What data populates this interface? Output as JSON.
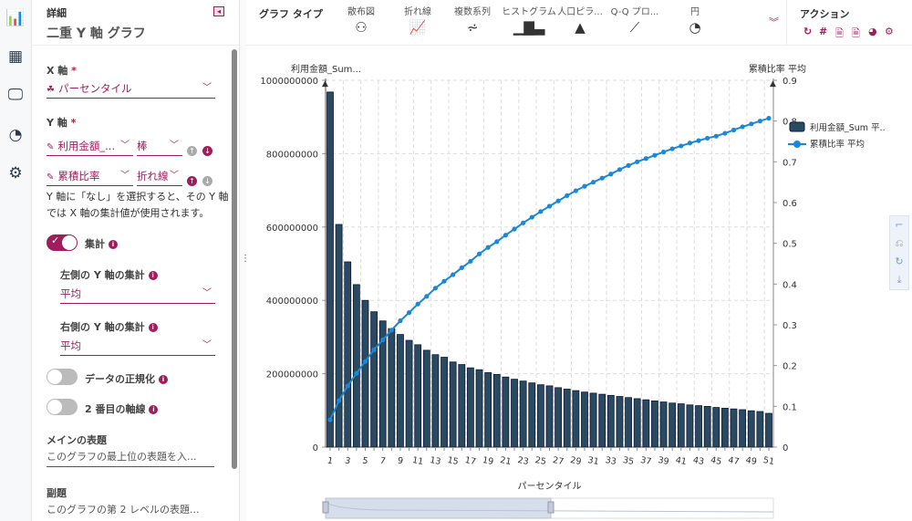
{
  "rail": {
    "icons": [
      "bar-chart-icon",
      "table-icon",
      "monitor-icon",
      "dashboard-icon",
      "gear-icon"
    ]
  },
  "panel": {
    "kicker": "詳細",
    "title": "二重 Y 軸 グラフ",
    "x_axis": {
      "label": "X 軸",
      "required": "*",
      "value": "パーセンタイル"
    },
    "y_axis": {
      "label": "Y 軸",
      "required": "*",
      "rows": [
        {
          "field": "利用金額_...",
          "type": "棒"
        },
        {
          "field": "累積比率",
          "type": "折れ線"
        }
      ]
    },
    "note": "Y 軸に「なし」を選択すると、その Y 軸では X 軸の集計値が使用されます。",
    "aggregate": {
      "label": "集計",
      "on": true
    },
    "left_agg": {
      "label": "左側の Y 軸の集計",
      "value": "平均"
    },
    "right_agg": {
      "label": "右側の Y 軸の集計",
      "value": "平均"
    },
    "normalize": {
      "label": "データの正規化",
      "on": false
    },
    "second_axis": {
      "label": "2 番目の軸線",
      "on": false
    },
    "main_title": {
      "label": "メインの表題",
      "placeholder": "このグラフの最上位の表題を入..."
    },
    "subtitle": {
      "label": "副題",
      "placeholder": "このグラフの第 2 レベルの表題..."
    }
  },
  "toolbar": {
    "chart_type_label": "グラフ タイプ",
    "types": [
      {
        "label": "散布図",
        "icon": "scatter-icon"
      },
      {
        "label": "折れ線",
        "icon": "line-icon"
      },
      {
        "label": "複数系列",
        "icon": "multi-series-icon"
      },
      {
        "label": "ヒストグラム",
        "icon": "histogram-icon"
      },
      {
        "label": "人口ピラ...",
        "icon": "pyramid-icon"
      },
      {
        "label": "Q-Q プロ...",
        "icon": "qq-plot-icon"
      },
      {
        "label": "円",
        "icon": "pie-icon"
      }
    ],
    "actions_label": "アクション",
    "actions": [
      "refresh-icon",
      "hash-icon",
      "pdf-icon",
      "image-icon",
      "dashboard-icon",
      "gear-icon"
    ]
  },
  "colors": {
    "accent": "#a01c5c",
    "bar": "#2a4a60",
    "line": "#1a88d8"
  },
  "chart_data": {
    "type": "bar+line",
    "xlabel": "パーセンタイル",
    "ylabel_left": "利用金額_Sum...",
    "ylabel_right": "累積比率 平均",
    "ylim_left": [
      0,
      1000000000
    ],
    "ylim_right": [
      0,
      0.9
    ],
    "left_ticks": [
      "0",
      "200000000",
      "400000000",
      "600000000",
      "800000000",
      "1000000000"
    ],
    "right_ticks": [
      "0",
      "0.1",
      "0.2",
      "0.3",
      "0.4",
      "0.5",
      "0.6",
      "0.7",
      "0.8",
      "0.9"
    ],
    "grid": true,
    "legend_position": "right",
    "categories": [
      1,
      2,
      3,
      4,
      5,
      6,
      7,
      8,
      9,
      10,
      11,
      12,
      13,
      14,
      15,
      16,
      17,
      18,
      19,
      20,
      21,
      22,
      23,
      24,
      25,
      26,
      27,
      28,
      29,
      30,
      31,
      32,
      33,
      34,
      35,
      36,
      37,
      38,
      39,
      40,
      41,
      42,
      43,
      44,
      45,
      46,
      47,
      48,
      49,
      50,
      51
    ],
    "series": [
      {
        "name": "利用金額_Sum 平...",
        "type": "bar",
        "axis": "left",
        "values": [
          968000000,
          607000000,
          505000000,
          443000000,
          400000000,
          369000000,
          344000000,
          323000000,
          307000000,
          291000000,
          279000000,
          264000000,
          252000000,
          245000000,
          232000000,
          225000000,
          216000000,
          211000000,
          203000000,
          198000000,
          191000000,
          185000000,
          180000000,
          175000000,
          170000000,
          167000000,
          162000000,
          158000000,
          154000000,
          150000000,
          147000000,
          144000000,
          141000000,
          138000000,
          135000000,
          132000000,
          129000000,
          126000000,
          123000000,
          120000000,
          118000000,
          115000000,
          113000000,
          111000000,
          108000000,
          106000000,
          104000000,
          102000000,
          99000000,
          97000000,
          92000000
        ]
      },
      {
        "name": "累積比率 平均",
        "type": "line",
        "axis": "right",
        "values": [
          0.067,
          0.114,
          0.15,
          0.181,
          0.21,
          0.239,
          0.263,
          0.287,
          0.31,
          0.33,
          0.351,
          0.37,
          0.39,
          0.407,
          0.423,
          0.44,
          0.456,
          0.474,
          0.49,
          0.504,
          0.52,
          0.535,
          0.55,
          0.564,
          0.578,
          0.591,
          0.604,
          0.617,
          0.629,
          0.64,
          0.65,
          0.66,
          0.67,
          0.681,
          0.691,
          0.7,
          0.708,
          0.716,
          0.724,
          0.732,
          0.739,
          0.746,
          0.752,
          0.758,
          0.763,
          0.77,
          0.778,
          0.786,
          0.793,
          0.8,
          0.807
        ]
      }
    ]
  }
}
